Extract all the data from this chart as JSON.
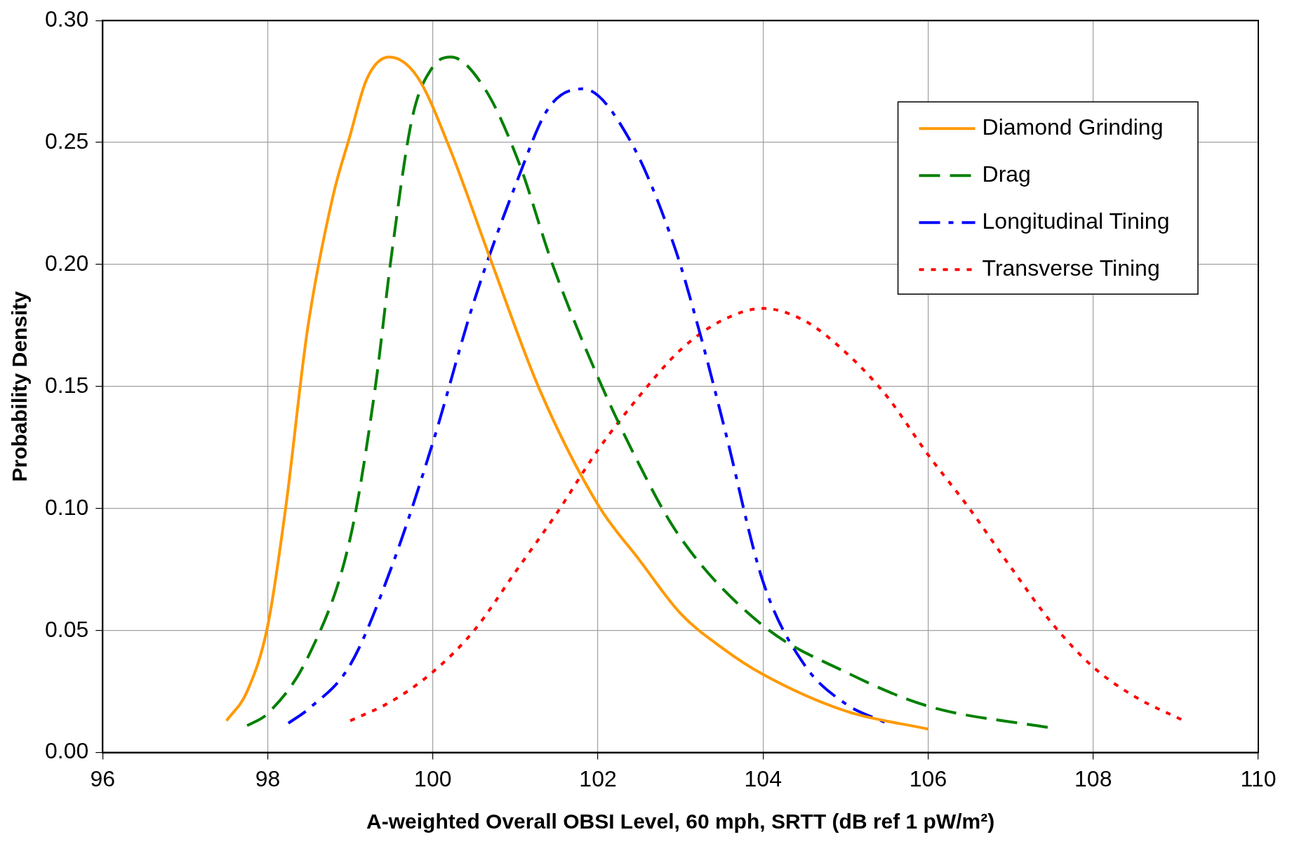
{
  "chart_data": {
    "type": "line",
    "xlabel": "A-weighted Overall OBSI Level, 60 mph, SRTT (dB ref 1 pW/m²)",
    "ylabel": "Probability Density",
    "xlim": [
      96,
      110
    ],
    "xticks": [
      96,
      98,
      100,
      102,
      104,
      106,
      108,
      110
    ],
    "ylim": [
      0,
      0.3
    ],
    "yticks": [
      {
        "value": 0,
        "label": "0.00"
      },
      {
        "value": 0.05,
        "label": "0.05"
      },
      {
        "value": 0.1,
        "label": "0.10"
      },
      {
        "value": 0.15,
        "label": "0.15"
      },
      {
        "value": 0.2,
        "label": "0.20"
      },
      {
        "value": 0.25,
        "label": "0.25"
      },
      {
        "value": 0.3,
        "label": "0.30"
      }
    ],
    "grid": true,
    "legend": "top right",
    "marker": "none",
    "series": [
      {
        "name": "Diamond Grinding",
        "color": "#ff9900",
        "line_style": "solid",
        "x": [
          97.5,
          97.75,
          98,
          98.22,
          98.48,
          98.79,
          98.99,
          99.2,
          99.47,
          99.81,
          100.2,
          100.7,
          101.29,
          102.01,
          102.5,
          103,
          103.5,
          104,
          105,
          106
        ],
        "values": [
          0.013,
          0.025,
          0.052,
          0.101,
          0.173,
          0.228,
          0.252,
          0.276,
          0.285,
          0.277,
          0.248,
          0.202,
          0.149,
          0.101,
          0.079,
          0.057,
          0.043,
          0.032,
          0.017,
          0.0096
        ]
      },
      {
        "name": "Drag",
        "color": "#008000",
        "line_style": "dashed",
        "x": [
          97.75,
          98,
          98.5,
          99,
          99.3,
          99.5,
          99.75,
          100,
          100.22,
          100.63,
          101.04,
          101.45,
          102.01,
          102.47,
          102.98,
          104,
          105,
          106,
          107.5
        ],
        "values": [
          0.011,
          0.016,
          0.04,
          0.088,
          0.149,
          0.204,
          0.26,
          0.281,
          0.285,
          0.272,
          0.242,
          0.2,
          0.153,
          0.12,
          0.089,
          0.052,
          0.033,
          0.019,
          0.01
        ]
      },
      {
        "name": "Longitudinal Tining",
        "color": "#0000ff",
        "line_style": "dashdot",
        "x": [
          98.25,
          98.5,
          99,
          99.5,
          100,
          100.5,
          101.03,
          101.4,
          101.82,
          102.37,
          102.93,
          103.25,
          103.54,
          104,
          104.5,
          105,
          105.5
        ],
        "values": [
          0.012,
          0.018,
          0.036,
          0.076,
          0.127,
          0.185,
          0.235,
          0.264,
          0.272,
          0.252,
          0.207,
          0.17,
          0.132,
          0.07,
          0.036,
          0.02,
          0.012
        ]
      },
      {
        "name": "Transverse Tining",
        "color": "#ff0000",
        "line_style": "dotted",
        "x": [
          99,
          99.5,
          100,
          100.5,
          101,
          101.5,
          102,
          102.5,
          103,
          103.5,
          104,
          104.5,
          105,
          105.5,
          106,
          106.5,
          107,
          107.5,
          108,
          108.5,
          109.1
        ],
        "values": [
          0.013,
          0.021,
          0.033,
          0.05,
          0.074,
          0.098,
          0.124,
          0.146,
          0.165,
          0.177,
          0.182,
          0.177,
          0.164,
          0.146,
          0.122,
          0.1,
          0.076,
          0.053,
          0.035,
          0.023,
          0.013
        ]
      }
    ]
  }
}
